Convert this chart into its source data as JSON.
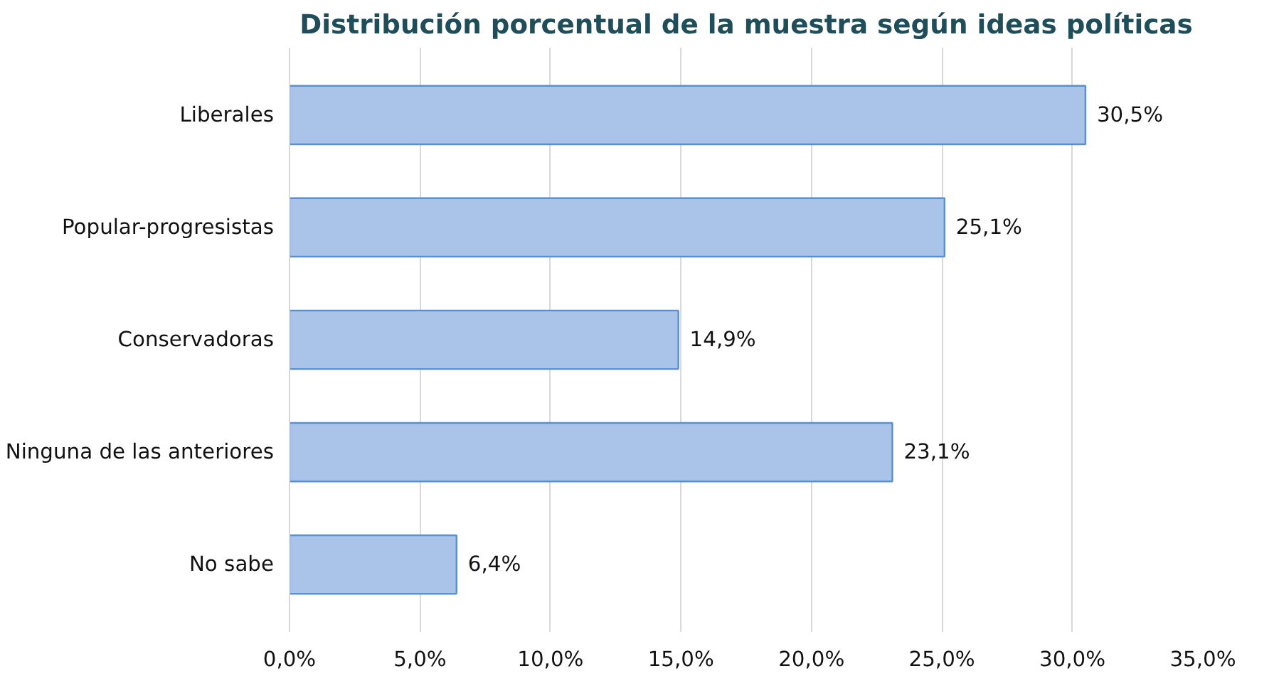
{
  "chart_data": {
    "type": "bar",
    "orientation": "horizontal",
    "title": "Distribución porcentual de la muestra según ideas políticas",
    "categories": [
      "Liberales",
      "Popular-progresistas",
      "Conservadoras",
      "Ninguna de las anteriores",
      "No sabe"
    ],
    "values": [
      30.5,
      25.1,
      14.9,
      23.1,
      6.4
    ],
    "value_labels": [
      "30,5%",
      "25,1%",
      "14,9%",
      "23,1%",
      "6,4%"
    ],
    "color": "#a9c4e8",
    "xlim": [
      0,
      35
    ],
    "xticks": [
      {
        "value": 0,
        "label": "0,0%"
      },
      {
        "value": 5,
        "label": "5,0%"
      },
      {
        "value": 10,
        "label": "10,0%"
      },
      {
        "value": 15,
        "label": "15,0%"
      },
      {
        "value": 20,
        "label": "20,0%"
      },
      {
        "value": 25,
        "label": "25,0%"
      },
      {
        "value": 30,
        "label": "30,0%"
      },
      {
        "value": 35,
        "label": "35,0%"
      }
    ],
    "grid": "x"
  }
}
